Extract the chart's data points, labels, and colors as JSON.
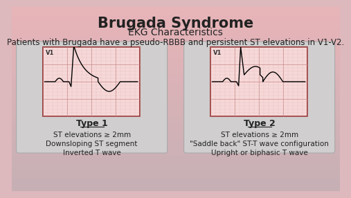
{
  "title": "Brugada Syndrome",
  "subtitle": "EKG Characteristics",
  "intro_text": "Patients with Brugada have a pseudo-RBBB and persistent ST elevations in V1-V2.",
  "type1_label": "Type 1",
  "type1_lines": [
    "ST elevations ≥ 2mm",
    "Downsloping ST segment",
    "Inverted T wave"
  ],
  "type2_label": "Type 2",
  "type2_lines": [
    "ST elevations ≥ 2mm",
    "\"Saddle back\" ST-T wave configuration",
    "Upright or biphasic T wave"
  ],
  "text_color": "#222222",
  "title_fontsize": 15,
  "subtitle_fontsize": 10,
  "intro_fontsize": 8.5,
  "label_fontsize": 9,
  "body_fontsize": 7.5,
  "ecg_grid_color": "#c08080",
  "ecg_border_color": "#8b2020",
  "ecg_bg_color": "#f7d8d8",
  "card_bg_color": "#d0cece"
}
